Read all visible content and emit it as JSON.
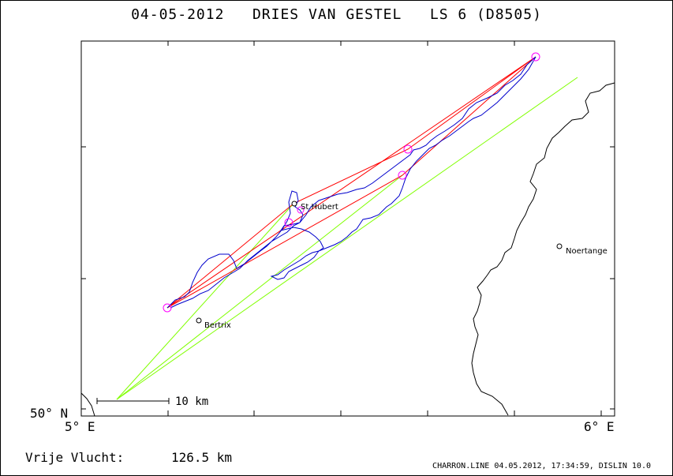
{
  "title": "04-05-2012   DRIES VAN GESTEL   LS 6 (D8505)",
  "axes": {
    "lat_label": "50° N",
    "lon_label_left": "5° E",
    "lon_label_right": "6° E"
  },
  "places": [
    {
      "name": "St.Hubert"
    },
    {
      "name": "Bertrix"
    },
    {
      "name": "Noertange"
    }
  ],
  "scale_bar": {
    "label": "10 km"
  },
  "distance": {
    "label": "Vrije Vlucht:",
    "value": "126.5 km"
  },
  "footer": "CHARRON.LINE 04.05.2012, 17:34:59, DISLIN 10.0",
  "colors": {
    "track": "#0000cc",
    "task_line": "#ff0000",
    "cylinder": "#ff00ff",
    "sector": "#80ff00",
    "border": "#000000"
  }
}
